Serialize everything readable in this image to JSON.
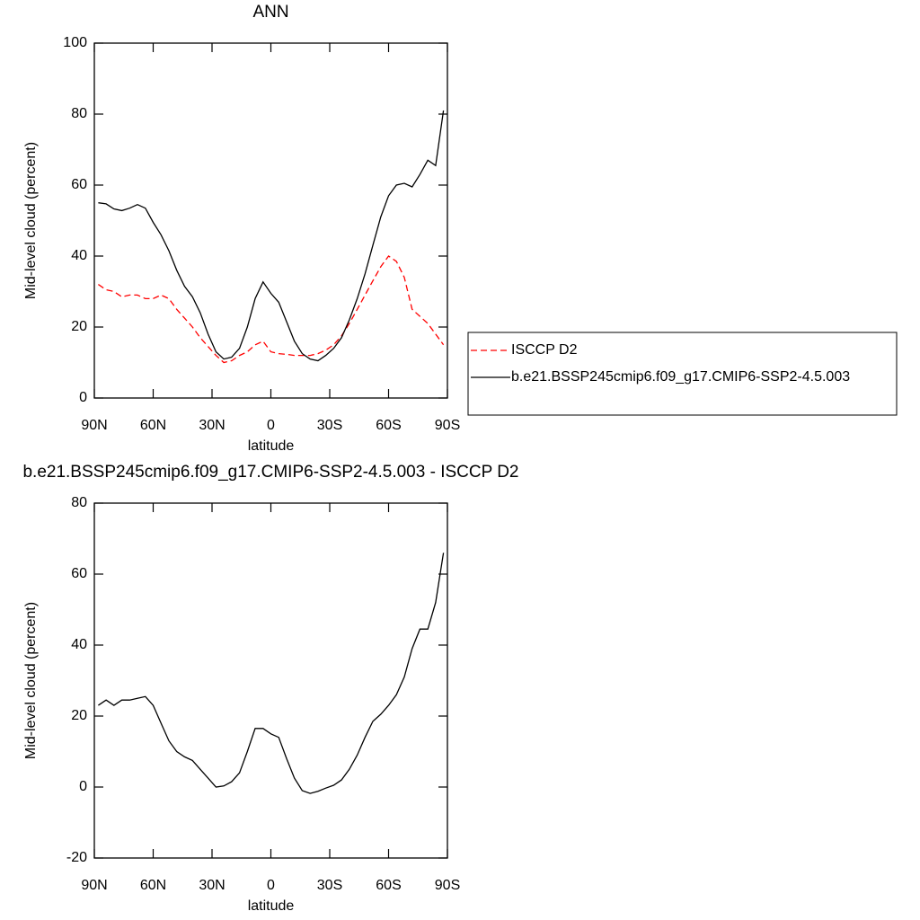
{
  "chart_data": [
    {
      "type": "line",
      "title": "ANN",
      "xlabel": "latitude",
      "ylabel": "Mid-level cloud (percent)",
      "x": [
        88,
        84,
        80,
        76,
        72,
        68,
        64,
        60,
        56,
        52,
        48,
        44,
        40,
        36,
        32,
        28,
        24,
        20,
        16,
        12,
        8,
        4,
        0,
        -4,
        -8,
        -12,
        -16,
        -20,
        -24,
        -28,
        -32,
        -36,
        -40,
        -44,
        -48,
        -52,
        -56,
        -60,
        -64,
        -68,
        -72,
        -76,
        -80,
        -84,
        -88
      ],
      "series": [
        {
          "name": "ISCCP D2",
          "color": "#ff0000",
          "dash": "dashed",
          "values": [
            32,
            30.5,
            30,
            28.5,
            29,
            29,
            28,
            28,
            29,
            28,
            25,
            22.5,
            20,
            17,
            14.5,
            12,
            10,
            10.5,
            12,
            13,
            15,
            16,
            13,
            12.5,
            12.3,
            12,
            12,
            12,
            12.5,
            13.5,
            15,
            17.5,
            21,
            25,
            29,
            33,
            37,
            40,
            38.5,
            34,
            25,
            23,
            21,
            18,
            15
          ]
        },
        {
          "name": "b.e21.BSSP245cmip6.f09_g17.CMIP6-SSP2-4.5.003",
          "color": "#000000",
          "dash": "solid",
          "values": [
            55,
            54.7,
            53.3,
            52.8,
            53.5,
            54.5,
            53.5,
            49.5,
            46,
            41.5,
            36,
            31.5,
            28.5,
            24,
            18,
            13,
            11,
            11.5,
            14,
            20,
            28,
            32.7,
            29.5,
            27,
            21.5,
            16,
            12.5,
            11,
            10.5,
            12,
            14,
            17,
            22,
            28,
            35,
            43,
            51,
            57,
            60,
            60.5,
            59.5,
            63,
            67,
            65.5,
            81
          ]
        }
      ],
      "xlim": [
        90,
        -90
      ],
      "ylim": [
        0,
        100
      ],
      "xticks": [
        {
          "value": 90,
          "label": "90N"
        },
        {
          "value": 60,
          "label": "60N"
        },
        {
          "value": 30,
          "label": "30N"
        },
        0,
        {
          "value": -30,
          "label": "30S"
        },
        {
          "value": -60,
          "label": "60S"
        },
        {
          "value": -90,
          "label": "90S"
        }
      ],
      "yticks": [
        0,
        20,
        40,
        60,
        80,
        100
      ],
      "legend": "right"
    },
    {
      "type": "line",
      "title": "b.e21.BSSP245cmip6.f09_g17.CMIP6-SSP2-4.5.003 - ISCCP D2",
      "xlabel": "latitude",
      "ylabel": "Mid-level cloud (percent)",
      "x": [
        88,
        84,
        80,
        76,
        72,
        68,
        64,
        60,
        56,
        52,
        48,
        44,
        40,
        36,
        32,
        28,
        24,
        20,
        16,
        12,
        8,
        4,
        0,
        -4,
        -8,
        -12,
        -16,
        -20,
        -24,
        -28,
        -32,
        -36,
        -40,
        -44,
        -48,
        -52,
        -56,
        -60,
        -64,
        -68,
        -72,
        -76,
        -80,
        -84,
        -88
      ],
      "series": [
        {
          "color": "#000000",
          "dash": "solid",
          "values": [
            23,
            24.5,
            23,
            24.5,
            24.5,
            25,
            25.5,
            23,
            18,
            13,
            10,
            8.5,
            7.5,
            5,
            2.5,
            0,
            0.3,
            1.5,
            4,
            10,
            16.5,
            16.5,
            15,
            14,
            8,
            2.5,
            -1,
            -1.8,
            -1.2,
            -0.3,
            0.5,
            2,
            5,
            9,
            14,
            18.5,
            20.5,
            23,
            26,
            31,
            39,
            44.5,
            44.5,
            52,
            66
          ]
        }
      ],
      "xlim": [
        90,
        -90
      ],
      "ylim": [
        -20,
        80
      ],
      "xticks": [
        {
          "value": 90,
          "label": "90N"
        },
        {
          "value": 60,
          "label": "60N"
        },
        {
          "value": 30,
          "label": "30N"
        },
        0,
        {
          "value": -30,
          "label": "30S"
        },
        {
          "value": -60,
          "label": "60S"
        },
        {
          "value": -90,
          "label": "90S"
        }
      ],
      "yticks": [
        -20,
        0,
        20,
        40,
        60,
        80
      ]
    }
  ]
}
